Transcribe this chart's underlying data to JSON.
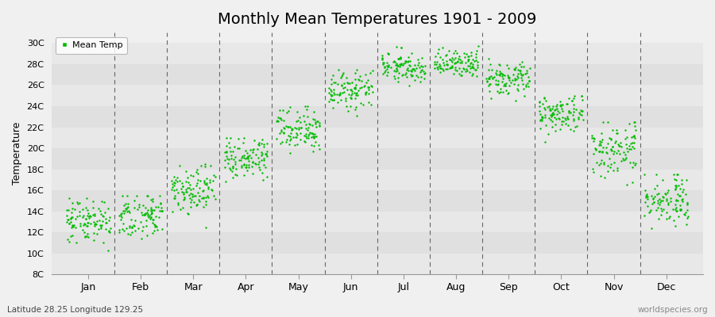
{
  "title": "Monthly Mean Temperatures 1901 - 2009",
  "ylabel": "Temperature",
  "subtitle_left": "Latitude 28.25 Longitude 129.25",
  "subtitle_right": "worldspecies.org",
  "legend_label": "Mean Temp",
  "dot_color": "#00bb00",
  "background_color": "#eeeeee",
  "band_colors": [
    "#e8e8e8",
    "#e0e0e0"
  ],
  "ylim": [
    8,
    31
  ],
  "yticks": [
    8,
    10,
    12,
    14,
    16,
    18,
    20,
    22,
    24,
    26,
    28,
    30
  ],
  "ytick_labels": [
    "8C",
    "10C",
    "12C",
    "14C",
    "16C",
    "18C",
    "20C",
    "22C",
    "24C",
    "26C",
    "28C",
    "30C"
  ],
  "months": [
    "Jan",
    "Feb",
    "Mar",
    "Apr",
    "May",
    "Jun",
    "Jul",
    "Aug",
    "Sep",
    "Oct",
    "Nov",
    "Dec"
  ],
  "month_means": [
    13.2,
    13.5,
    16.0,
    19.0,
    22.0,
    25.5,
    27.8,
    28.0,
    26.5,
    23.2,
    19.8,
    15.0
  ],
  "month_stds": [
    1.1,
    1.1,
    1.1,
    1.0,
    1.0,
    0.9,
    0.7,
    0.7,
    0.8,
    0.9,
    1.2,
    1.2
  ],
  "month_mins": [
    9.5,
    9.5,
    12.5,
    16.5,
    19.5,
    23.0,
    25.8,
    26.0,
    24.2,
    20.5,
    16.5,
    12.0
  ],
  "month_maxs": [
    15.5,
    15.5,
    18.5,
    21.0,
    24.0,
    27.5,
    29.8,
    29.8,
    28.5,
    25.0,
    22.5,
    17.5
  ],
  "n_years": 109,
  "seed": 42,
  "dot_size": 3,
  "title_fontsize": 14,
  "axis_fontsize": 9,
  "label_fontsize": 8
}
